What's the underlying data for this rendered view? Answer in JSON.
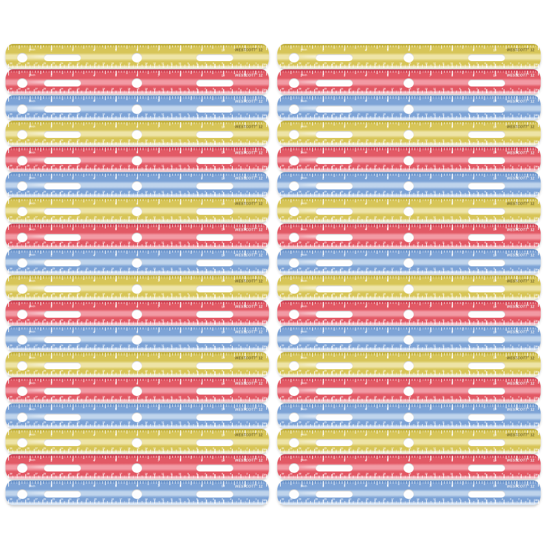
{
  "meta": {
    "description": "Product photo: 36-pack of translucent plastic 12-inch rulers stacked in two columns, repeating yellow / red / blue colors on a white background"
  },
  "brand": {
    "name": "WESTCOTT",
    "reg": "®",
    "size_label": "12"
  },
  "labels": {
    "inch_unit": "inch",
    "cm_unit": "CM"
  },
  "scale": {
    "inch_numbers": [
      "1",
      "2",
      "3",
      "4",
      "5",
      "6",
      "7",
      "8",
      "9",
      "10",
      "11"
    ],
    "cm_numbers": [
      "30",
      "29",
      "28",
      "27",
      "26",
      "25",
      "24",
      "23",
      "22",
      "21",
      "20",
      "19",
      "18",
      "17",
      "16",
      "15",
      "14",
      "13",
      "12",
      "11",
      "10",
      "9",
      "8",
      "7",
      "6",
      "5",
      "4",
      "3",
      "2",
      "1"
    ]
  },
  "grid": {
    "columns": 2,
    "rows_per_column": 18,
    "total_rulers": 36,
    "color_cycle": [
      "yellow",
      "red",
      "blue"
    ]
  },
  "colors": {
    "background": "#ffffff",
    "yellow": {
      "base": "#d7c558",
      "dark": "#bfae3c",
      "light": "#eee4a6",
      "bevel": "#f1ecd0",
      "brandText": "#6b5e1a",
      "brandShadow": "rgba(255,255,255,0.4)"
    },
    "red": {
      "base": "#e25965",
      "dark": "#c83f51",
      "light": "#f29aa4",
      "bevel": "#f6c3cb",
      "brandText": "#ffffff",
      "brandShadow": "rgba(120,20,40,0.6)"
    },
    "blue": {
      "base": "#7da3d6",
      "dark": "#6690c7",
      "light": "#bfd4ec",
      "bevel": "#d8e5f4",
      "brandText": "#ffffff",
      "brandShadow": "rgba(30,70,130,0.6)"
    }
  }
}
